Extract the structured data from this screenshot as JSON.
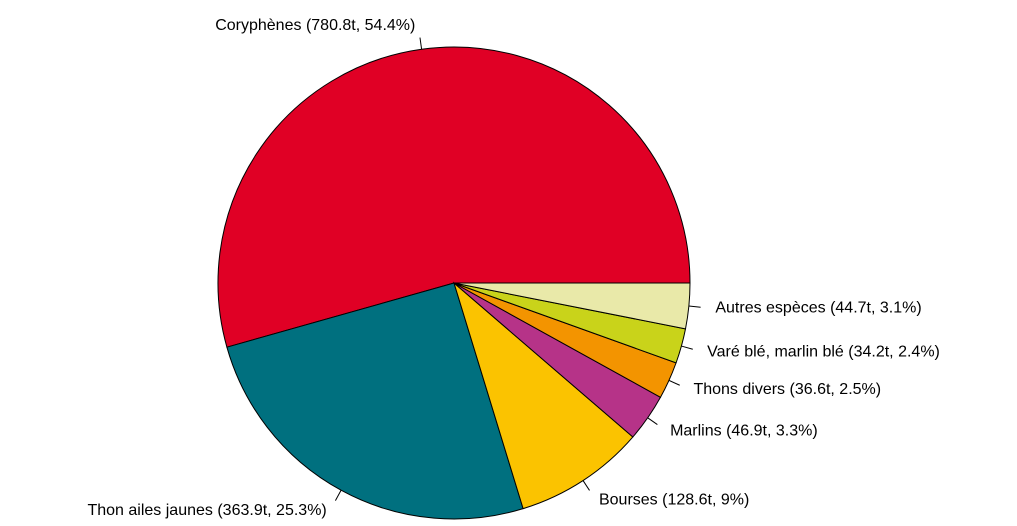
{
  "chart_data": {
    "type": "pie",
    "categories": [
      "Coryphènes",
      "Thon ailes jaunes",
      "Bourses",
      "Marlins",
      "Thons divers",
      "Varé blé, marlin blé",
      "Autres espèces"
    ],
    "values": [
      780.8,
      363.9,
      128.6,
      46.9,
      36.6,
      34.2,
      44.7
    ],
    "value_labels": [
      "(780.8t, 54.4%)",
      "(363.9t, 25.3%)",
      "(128.6t, 9%)",
      "(46.9t, 3.3%)",
      "(36.6t, 2.5%)",
      "(34.2t, 2.4%)",
      "(44.7t, 3.1%)"
    ],
    "colors": [
      "#E00025",
      "#00707F",
      "#FBC300",
      "#B63388",
      "#F39400",
      "#C9D31A",
      "#E9E9A9"
    ]
  }
}
